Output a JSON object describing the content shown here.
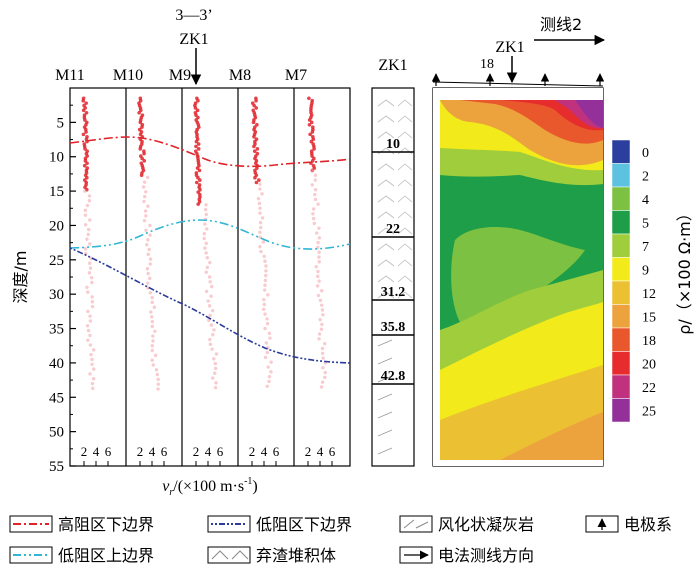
{
  "top_label": {
    "section": "3—3’",
    "borehole": "ZK1"
  },
  "profile_labels": [
    "M11",
    "M10",
    "M9",
    "M8",
    "M7"
  ],
  "depth_axis": {
    "label": "深度/m",
    "ticks": [
      "5",
      "10",
      "15",
      "20",
      "25",
      "30",
      "35",
      "40",
      "45",
      "50",
      "55"
    ]
  },
  "velocity_axis": {
    "label": "vr/(×100 m·s-1)",
    "label_v": "v",
    "label_sub": "r",
    "label_rest": "/(×100 m·s",
    "label_sup": "-1",
    "label_end": ")",
    "ticks": [
      "2",
      "4",
      "6"
    ]
  },
  "borehole_column": {
    "title": "ZK1",
    "interfaces": [
      "10",
      "22",
      "31.2",
      "35.8",
      "42.8"
    ]
  },
  "resistivity_section": {
    "survey_line": "测线2",
    "borehole": "ZK1",
    "electrode_number": "18",
    "colorbar_label": "ρ/（×100 Ω·m）",
    "colorbar": [
      {
        "value": "0",
        "color": "#2b3f9e"
      },
      {
        "value": "2",
        "color": "#5cc2e0"
      },
      {
        "value": "4",
        "color": "#7cc141"
      },
      {
        "value": "5",
        "color": "#1e9e48"
      },
      {
        "value": "7",
        "color": "#9fcd3b"
      },
      {
        "value": "9",
        "color": "#f2ea1a"
      },
      {
        "value": "12",
        "color": "#ecc033"
      },
      {
        "value": "15",
        "color": "#eca33d"
      },
      {
        "value": "18",
        "color": "#e9572d"
      },
      {
        "value": "20",
        "color": "#e62c2c"
      },
      {
        "value": "22",
        "color": "#c0327e"
      },
      {
        "value": "25",
        "color": "#93309a"
      }
    ]
  },
  "legend": [
    {
      "label": "高阻区下边界",
      "symbol": "red-dash-dot-line",
      "color": "#e0232b"
    },
    {
      "label": "低阻区下边界",
      "symbol": "blue-dash-dot-line",
      "color": "#2a3b9c"
    },
    {
      "label": "风化状凝灰岩",
      "symbol": "weathered-tuff-pattern"
    },
    {
      "label": "电极系",
      "symbol": "electrode-arrow"
    },
    {
      "label": "低阻区上边界",
      "symbol": "cyan-dash-dot-line",
      "color": "#33b6d6"
    },
    {
      "label": "弃渣堆积体",
      "symbol": "waste-slag-pattern"
    },
    {
      "label": "电法测线方向",
      "symbol": "direction-arrow"
    }
  ]
}
